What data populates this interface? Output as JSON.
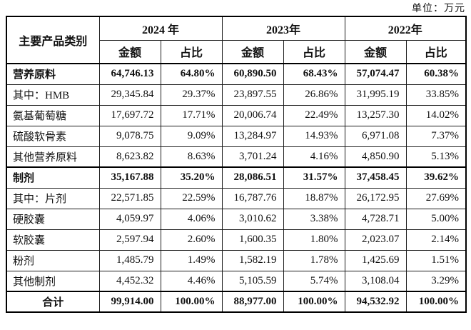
{
  "unit_label": "单位：万元",
  "table": {
    "category_header": "主要产品类别",
    "amount_header": "金额",
    "ratio_header": "占比",
    "years": [
      "2024 年",
      "2023年",
      "2022年"
    ],
    "rows": [
      {
        "label": "营养原料",
        "bold": true,
        "thick_top": false,
        "center": false,
        "values": [
          "64,746.13",
          "64.80%",
          "60,890.50",
          "68.43%",
          "57,074.47",
          "60.38%"
        ]
      },
      {
        "label": "其中：HMB",
        "bold": false,
        "thick_top": false,
        "center": false,
        "values": [
          "29,345.84",
          "29.37%",
          "23,897.55",
          "26.86%",
          "31,995.19",
          "33.85%"
        ]
      },
      {
        "label": "氨基葡萄糖",
        "bold": false,
        "thick_top": false,
        "center": false,
        "values": [
          "17,697.72",
          "17.71%",
          "20,006.74",
          "22.49%",
          "13,257.30",
          "14.02%"
        ]
      },
      {
        "label": "硫酸软骨素",
        "bold": false,
        "thick_top": false,
        "center": false,
        "values": [
          "9,078.75",
          "9.09%",
          "13,284.97",
          "14.93%",
          "6,971.08",
          "7.37%"
        ]
      },
      {
        "label": "其他营养原料",
        "bold": false,
        "thick_top": false,
        "center": false,
        "values": [
          "8,623.82",
          "8.63%",
          "3,701.24",
          "4.16%",
          "4,850.90",
          "5.13%"
        ]
      },
      {
        "label": "制剂",
        "bold": true,
        "thick_top": true,
        "center": false,
        "values": [
          "35,167.88",
          "35.20%",
          "28,086.51",
          "31.57%",
          "37,458.45",
          "39.62%"
        ]
      },
      {
        "label": "其中：片剂",
        "bold": false,
        "thick_top": false,
        "center": false,
        "values": [
          "22,571.85",
          "22.59%",
          "16,787.76",
          "18.87%",
          "26,172.95",
          "27.69%"
        ]
      },
      {
        "label": "硬胶囊",
        "bold": false,
        "thick_top": false,
        "center": false,
        "values": [
          "4,059.97",
          "4.06%",
          "3,010.62",
          "3.38%",
          "4,728.71",
          "5.00%"
        ]
      },
      {
        "label": "软胶囊",
        "bold": false,
        "thick_top": false,
        "center": false,
        "values": [
          "2,597.94",
          "2.60%",
          "1,600.35",
          "1.80%",
          "2,023.07",
          "2.14%"
        ]
      },
      {
        "label": "粉剂",
        "bold": false,
        "thick_top": false,
        "center": false,
        "values": [
          "1,485.79",
          "1.49%",
          "1,582.19",
          "1.78%",
          "1,425.69",
          "1.51%"
        ]
      },
      {
        "label": "其他制剂",
        "bold": false,
        "thick_top": false,
        "center": false,
        "values": [
          "4,452.32",
          "4.46%",
          "5,105.59",
          "5.74%",
          "3,108.04",
          "3.29%"
        ]
      },
      {
        "label": "合计",
        "bold": true,
        "thick_top": true,
        "center": true,
        "values": [
          "99,914.00",
          "100.00%",
          "88,977.00",
          "100.00%",
          "94,532.92",
          "100.00%"
        ]
      }
    ]
  }
}
